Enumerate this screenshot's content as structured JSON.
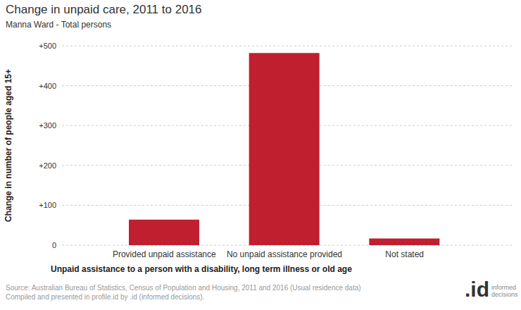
{
  "chart_data": {
    "type": "bar",
    "title": "Change in unpaid care, 2011 to 2016",
    "subtitle": "Manna Ward - Total persons",
    "x_label": "Unpaid assistance to a person with a disability, long term illness or old age",
    "y_label": "Change in number of people aged 15+",
    "categories": [
      "Provided unpaid assistance",
      "No unpaid assistance provided",
      "Not stated"
    ],
    "values": [
      64,
      482,
      17
    ],
    "color": "#c01f2f",
    "ylim": [
      0,
      500
    ],
    "yticks": [
      0,
      {
        "value": 100,
        "label": "+100"
      },
      {
        "value": 200,
        "label": "+200"
      },
      {
        "value": 300,
        "label": "+300"
      },
      {
        "value": 400,
        "label": "+400"
      },
      {
        "value": 500,
        "label": "+500"
      }
    ],
    "grid": true,
    "source": [
      "Source: Australian Bureau of Statistics, Census of Population and Housing, 2011 and 2016 (Usual residence data)",
      "Compiled and presented in profile.id by .id (informed decisions)."
    ],
    "logo": [
      ".id",
      "informed",
      "decisions"
    ]
  }
}
